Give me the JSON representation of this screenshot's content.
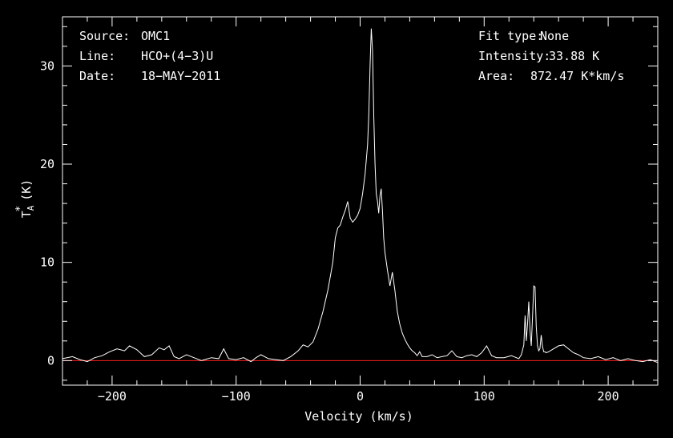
{
  "info_left": [
    {
      "key": "Source:",
      "value": "OMC1"
    },
    {
      "key": "Line:",
      "value": "HCO+(4−3)U"
    },
    {
      "key": "Date:",
      "value": "18−MAY−2011"
    }
  ],
  "info_right": [
    {
      "key": "Fit type:",
      "value": "None"
    },
    {
      "key": "Intensity:",
      "value": "33.88 K"
    },
    {
      "key": "Area:",
      "value": "872.47 K*km/s"
    }
  ],
  "chart_data": {
    "type": "line",
    "xlabel": "Velocity (km/s)",
    "ylabel_main": "T",
    "ylabel_sub": "A",
    "ylabel_sup": "*",
    "ylabel_unit": "(K)",
    "xlim": [
      -240,
      240
    ],
    "ylim": [
      -2.5,
      35
    ],
    "xticks": [
      -200,
      -100,
      0,
      100,
      200
    ],
    "yticks": [
      0,
      10,
      20,
      30
    ],
    "xtick_labels": [
      "−200",
      "−100",
      "0",
      "100",
      "200"
    ],
    "ytick_labels": [
      "0",
      "10",
      "20",
      "30"
    ],
    "baseline": 0,
    "colors": {
      "spectrum": "#ffffff",
      "baseline": "#ff1f1f",
      "axes": "#ffffff",
      "background": "#000000"
    },
    "series": [
      {
        "x": [
          -240,
          -232,
          -226,
          -220,
          -214,
          -208,
          -202,
          -196,
          -190,
          -186,
          -180,
          -174,
          -168,
          -162,
          -158,
          -154,
          -150,
          -146,
          -140,
          -134,
          -128,
          -120,
          -114,
          -110,
          -106,
          -100,
          -94,
          -88,
          -84,
          -80,
          -74,
          -68,
          -62,
          -56,
          -50,
          -46,
          -42,
          -38,
          -34,
          -30,
          -26,
          -22,
          -20,
          -18,
          -16,
          -14,
          -12,
          -10,
          -8,
          -6,
          -4,
          -2,
          0,
          2,
          4,
          6,
          7,
          8,
          9,
          10,
          11,
          12,
          13,
          14,
          15,
          16,
          17,
          18,
          19,
          20,
          22,
          24,
          26,
          28,
          30,
          32,
          34,
          36,
          38,
          40,
          42,
          44,
          46,
          48,
          50,
          54,
          58,
          62,
          66,
          70,
          74,
          78,
          82,
          86,
          90,
          94,
          98,
          102,
          106,
          110,
          116,
          122,
          126,
          128,
          130,
          132,
          133,
          134,
          135,
          136,
          137,
          138,
          139,
          140,
          141,
          142,
          143,
          144,
          145,
          146,
          147,
          148,
          149,
          150,
          152,
          156,
          160,
          164,
          168,
          172,
          176,
          180,
          186,
          192,
          198,
          204,
          210,
          216,
          222,
          228,
          234,
          240
        ],
        "y": [
          0.2,
          0.4,
          0.1,
          -0.1,
          0.3,
          0.5,
          0.9,
          1.2,
          1.0,
          1.5,
          1.1,
          0.4,
          0.6,
          1.3,
          1.1,
          1.5,
          0.4,
          0.2,
          0.6,
          0.3,
          0.0,
          0.3,
          0.2,
          1.2,
          0.2,
          0.1,
          0.3,
          -0.1,
          0.3,
          0.6,
          0.2,
          0.1,
          0.0,
          0.4,
          1.0,
          1.6,
          1.4,
          1.9,
          3.2,
          5.0,
          7.2,
          10.0,
          12.5,
          13.5,
          13.8,
          14.6,
          15.3,
          16.2,
          14.5,
          14.1,
          14.4,
          14.8,
          15.5,
          17.0,
          19.0,
          22.0,
          25.0,
          30.0,
          33.8,
          31.5,
          25.0,
          20.0,
          17.0,
          16.2,
          15.0,
          16.8,
          17.5,
          15.2,
          12.5,
          11.0,
          9.2,
          7.6,
          9.0,
          7.2,
          5.0,
          3.7,
          2.8,
          2.2,
          1.7,
          1.3,
          1.0,
          0.8,
          0.5,
          0.9,
          0.4,
          0.4,
          0.6,
          0.3,
          0.4,
          0.5,
          1.0,
          0.4,
          0.3,
          0.5,
          0.6,
          0.4,
          0.8,
          1.5,
          0.5,
          0.3,
          0.3,
          0.5,
          0.3,
          0.2,
          0.6,
          1.6,
          4.6,
          2.0,
          3.8,
          6.0,
          3.0,
          1.5,
          4.5,
          7.6,
          7.5,
          3.5,
          1.5,
          1.0,
          1.2,
          2.6,
          1.5,
          0.9,
          0.9,
          0.8,
          0.9,
          1.2,
          1.5,
          1.6,
          1.2,
          0.8,
          0.6,
          0.3,
          0.2,
          0.4,
          0.1,
          0.3,
          0.0,
          0.2,
          0.0,
          -0.1,
          0.1,
          -0.2
        ]
      }
    ]
  }
}
